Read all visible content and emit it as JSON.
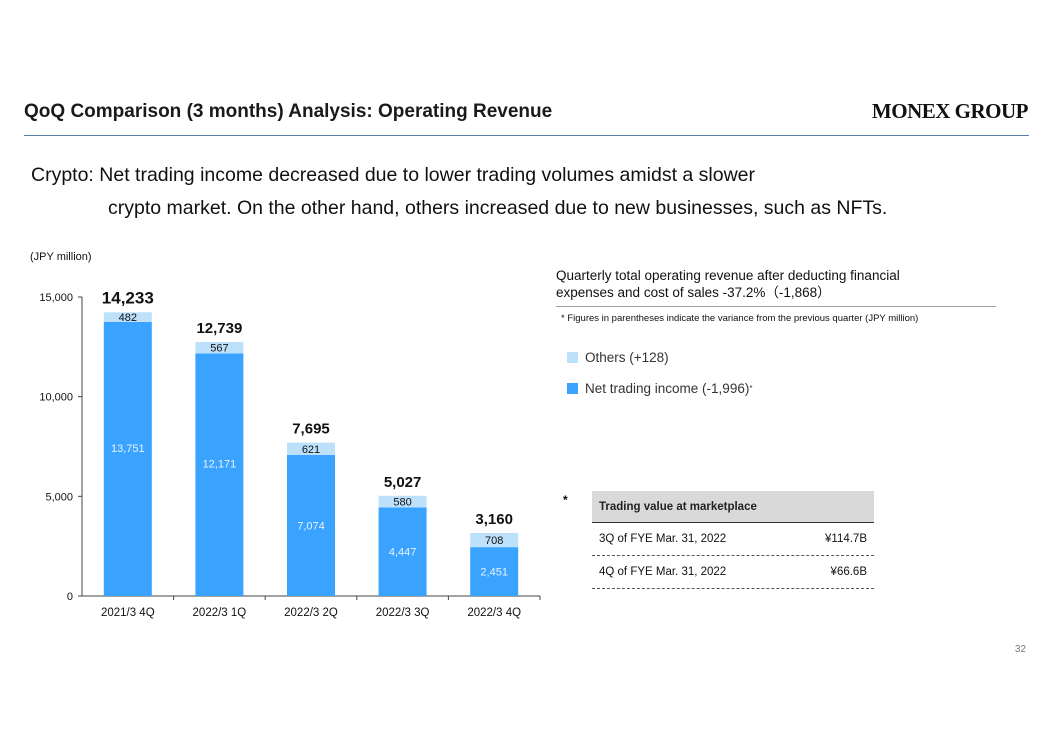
{
  "header": {
    "title": "QoQ Comparison (3 months) Analysis: Operating Revenue",
    "logo": "MONEX GROUP"
  },
  "lead": {
    "line1": "Crypto: Net trading income decreased due to lower trading volumes amidst a slower",
    "line2": "crypto market. On the other hand, others increased due to new businesses, such as NFTs."
  },
  "chart_data": {
    "type": "bar",
    "stacked": true,
    "unit_label": "(JPY million)",
    "categories": [
      "2021/3 4Q",
      "2022/3 1Q",
      "2022/3 2Q",
      "2022/3 3Q",
      "2022/3 4Q"
    ],
    "series": [
      {
        "name": "Net trading income (-1,996)",
        "values": [
          13751,
          12171,
          7074,
          4447,
          2451
        ],
        "color": "#3aa3ff"
      },
      {
        "name": "Others (+128)",
        "values": [
          482,
          567,
          621,
          580,
          708
        ],
        "color": "#bde0fb"
      }
    ],
    "totals": [
      14233,
      12739,
      7695,
      5027,
      3160
    ],
    "ylim": [
      0,
      15000
    ],
    "yticks": [
      0,
      5000,
      10000,
      15000
    ],
    "grid": false
  },
  "summary": {
    "line1": "Quarterly total operating revenue after deducting financial",
    "line2": "expenses and cost of sales -37.2%（-1,868）",
    "footnote": "* Figures in parentheses indicate the variance from the previous quarter (JPY million)"
  },
  "legend": {
    "others": "Others (+128)",
    "net": "Net trading income (-1,996)",
    "net_mark": "*",
    "others_color": "#bde0fb",
    "net_color": "#3aa3ff"
  },
  "table": {
    "marker": "*",
    "header": "Trading value at marketplace",
    "rows": [
      {
        "label": "3Q of FYE Mar. 31, 2022",
        "value": "¥114.7B"
      },
      {
        "label": "4Q of FYE Mar. 31, 2022",
        "value": "¥66.6B"
      }
    ]
  },
  "page_number": "32"
}
